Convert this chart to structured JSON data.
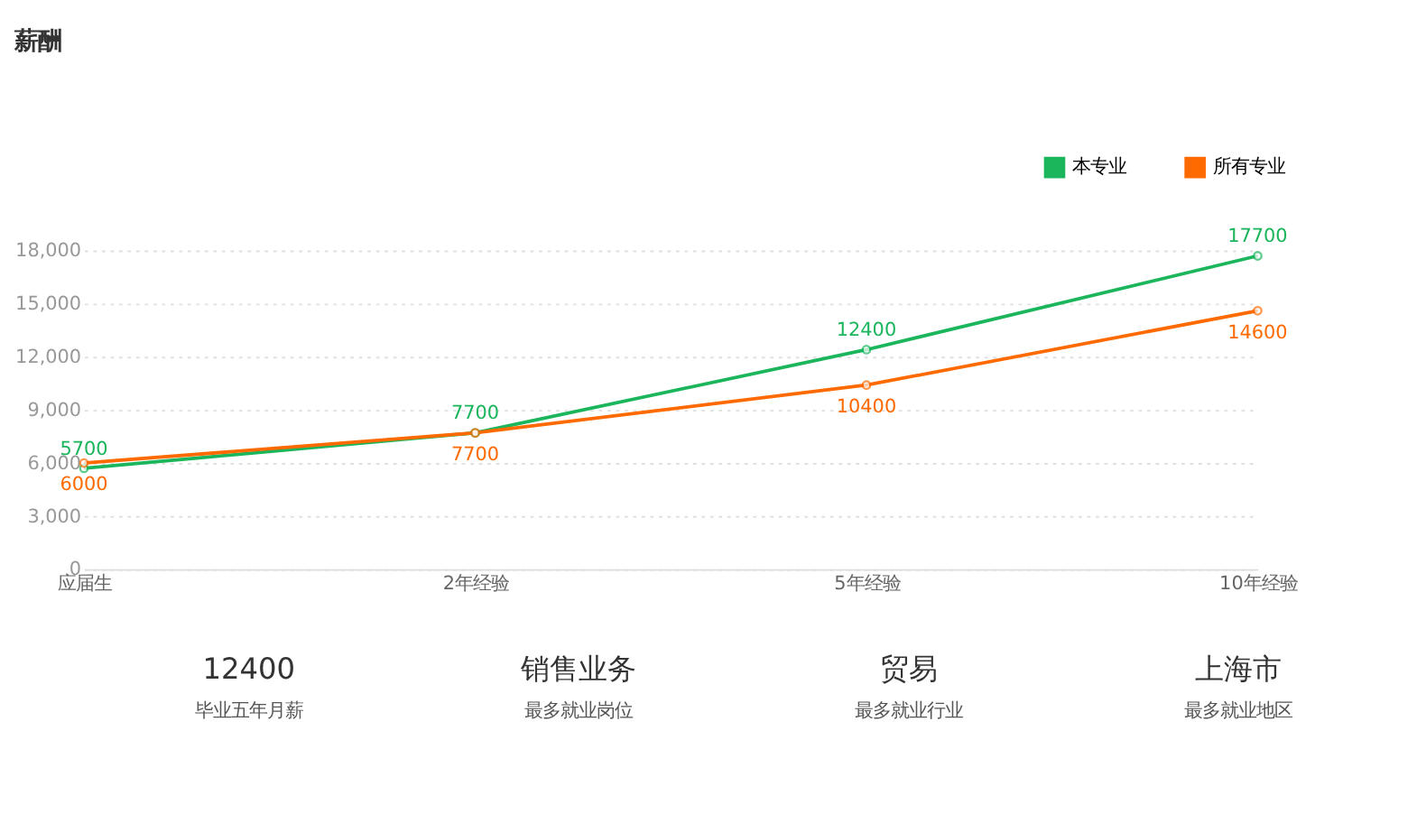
{
  "chart_data": {
    "type": "line",
    "title": "薪酬",
    "categories": [
      "应届生",
      "2年经验",
      "5年经验",
      "10年经验"
    ],
    "series": [
      {
        "name": "本专业",
        "color": "#1bb55c",
        "values": [
          5700,
          7700,
          12400,
          17700
        ]
      },
      {
        "name": "所有专业",
        "color": "#ff6a00",
        "values": [
          6000,
          7700,
          10400,
          14600
        ]
      }
    ],
    "ylim": [
      0,
      18000
    ],
    "yticks": [
      0,
      {
        "value": 3000,
        "label": "3,000"
      },
      {
        "value": 6000,
        "label": "6,000"
      },
      {
        "value": 9000,
        "label": "9,000"
      },
      {
        "value": 12000,
        "label": "12,000"
      },
      {
        "value": 15000,
        "label": "15,000"
      },
      {
        "value": 18000,
        "label": "18,000"
      }
    ],
    "grid": "y",
    "legend": "top right",
    "marker": "circle",
    "line_style": "solid",
    "data_labels": true,
    "annotations": [
      "12400",
      "毕业五年月薪",
      "销售业务",
      "最多就业岗位",
      "贸易",
      "最多就业行业",
      "上海市",
      "最多就业地区"
    ]
  }
}
